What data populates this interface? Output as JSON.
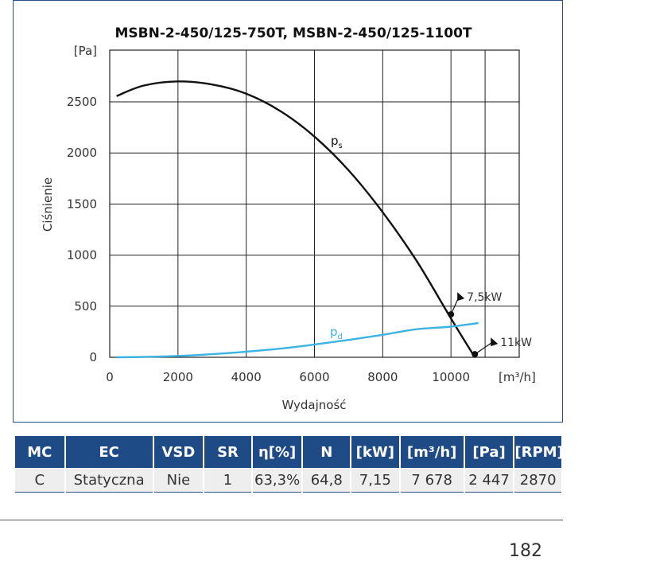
{
  "chart_data": {
    "type": "line",
    "title": "MSBN-2-450/125-750T, MSBN-2-450/125-1100T",
    "xlabel": "Wydajność",
    "ylabel": "Ciśnienie",
    "x_unit_label": "[m³/h]",
    "y_unit_label": "[Pa]",
    "xlim": [
      0,
      12000
    ],
    "ylim": [
      0,
      2500
    ],
    "x_ticks": [
      0,
      2000,
      4000,
      6000,
      8000,
      10000
    ],
    "y_ticks": [
      0,
      500,
      1000,
      1500,
      2000,
      2500
    ],
    "grid": true,
    "series": [
      {
        "name": "ps",
        "color": "#111111",
        "x": [
          200,
          1000,
          2000,
          3000,
          4000,
          5000,
          6000,
          7000,
          8000,
          9000,
          10000,
          10700
        ],
        "y": [
          2557,
          2660,
          2700,
          2670,
          2580,
          2410,
          2160,
          1830,
          1420,
          940,
          380,
          0
        ]
      },
      {
        "name": "pd",
        "color": "#3bb4e5",
        "x": [
          200,
          1000,
          2000,
          3000,
          4000,
          5000,
          6000,
          7000,
          8000,
          9000,
          10000,
          10800
        ],
        "y": [
          0,
          4,
          13,
          30,
          55,
          85,
          125,
          170,
          220,
          275,
          300,
          335
        ]
      }
    ],
    "annotations": [
      {
        "label": "7,5kW",
        "x": 10000,
        "y": 420
      },
      {
        "label": "11kW",
        "x": 10700,
        "y": 30
      }
    ]
  },
  "table": {
    "headers": [
      "MC",
      "EC",
      "VSD",
      "SR",
      "η[%]",
      "N",
      "[kW]",
      "[m³/h]",
      "[Pa]",
      "[RPM]"
    ],
    "rows": [
      [
        "C",
        "Statyczna",
        "Nie",
        "1",
        "63,3%",
        "64,8",
        "7,15",
        "7 678",
        "2 447",
        "2870"
      ]
    ]
  },
  "page_number": "182"
}
